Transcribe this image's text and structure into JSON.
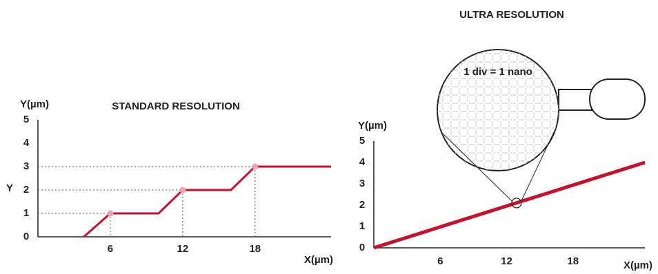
{
  "chart_data": [
    {
      "type": "line",
      "title": "STANDARD RESOLUTION",
      "y_label": "Y(µm)",
      "y_short": "Y",
      "x_label": "X(µm)",
      "x": [
        3.8,
        6,
        10,
        12,
        16,
        18,
        24.3
      ],
      "values": [
        0,
        1,
        1,
        2,
        2,
        3,
        3
      ],
      "color": "#c8102e",
      "xlim": [
        0,
        24.3
      ],
      "ylim": [
        0,
        5
      ],
      "xticks": [
        6,
        12,
        18
      ],
      "yticks": [
        0,
        1,
        2,
        3,
        4,
        5
      ]
    },
    {
      "type": "line",
      "title": "ULTRA RESOLUTION",
      "y_label": "Y(µm)",
      "x_label": "X(µm)",
      "zoom_label": "1 div = 1 nano",
      "x": [
        0,
        24.5
      ],
      "values": [
        0,
        4
      ],
      "color": "#c8102e",
      "zoom": {
        "x": 12.9,
        "y": 2.1
      },
      "xlim": [
        0,
        24.5
      ],
      "ylim": [
        0,
        5
      ],
      "xticks": [
        6,
        12,
        18
      ],
      "yticks": [
        0,
        1,
        2,
        3,
        4,
        5
      ]
    }
  ]
}
